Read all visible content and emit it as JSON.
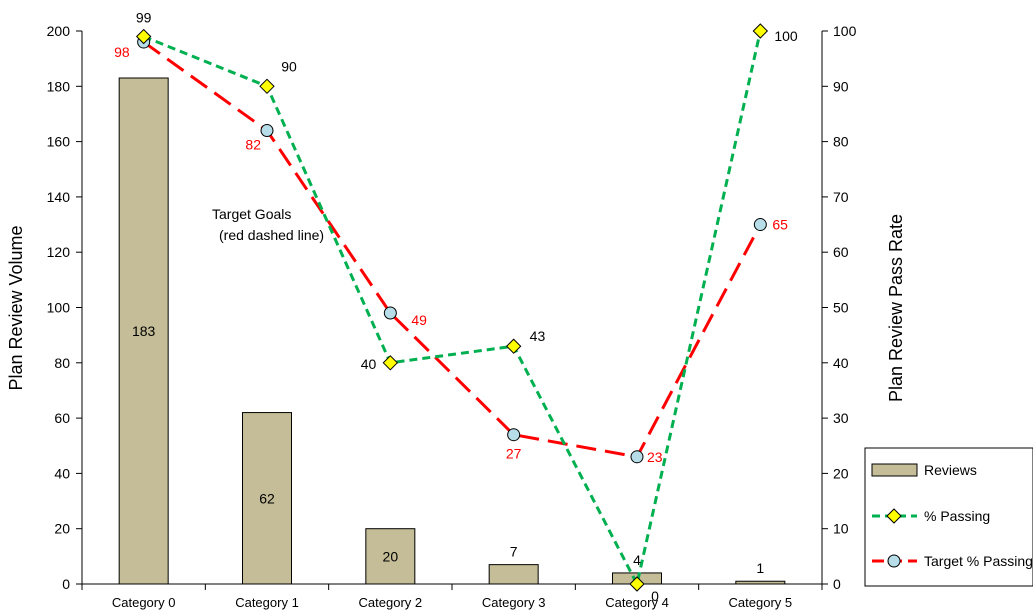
{
  "chart_data": {
    "type": "bar",
    "categories": [
      "Category 0",
      "Category 1",
      "Category 2",
      "Category 3",
      "Category 4",
      "Category 5"
    ],
    "series": [
      {
        "name": "Reviews",
        "type": "bar",
        "axis": "left",
        "values": [
          183,
          62,
          20,
          7,
          4,
          1
        ],
        "labels": [
          "183",
          "62",
          "20",
          "7",
          "4",
          "1"
        ]
      },
      {
        "name": "% Passing",
        "type": "line",
        "axis": "right",
        "values": [
          99,
          90,
          40,
          43,
          0,
          100
        ],
        "labels": [
          "99",
          "90",
          "40",
          "43",
          "0",
          "100"
        ]
      },
      {
        "name": "Target % Passing",
        "type": "line",
        "axis": "right",
        "values": [
          98,
          82,
          49,
          27,
          23,
          65
        ],
        "labels": [
          "98",
          "82",
          "49",
          "27",
          "23",
          "65"
        ]
      }
    ],
    "ylabel": "Plan Review Volume",
    "y2label": "Plan Review Pass Rate",
    "ylim": [
      0,
      200
    ],
    "y2lim": [
      0,
      100
    ],
    "yticks": [
      "0",
      "20",
      "40",
      "60",
      "80",
      "100",
      "120",
      "140",
      "160",
      "180",
      "200"
    ],
    "y2ticks": [
      "0",
      "10",
      "20",
      "30",
      "40",
      "50",
      "60",
      "70",
      "80",
      "90",
      "100"
    ],
    "annotation": [
      "Target Goals",
      "(red dashed line)"
    ],
    "legend_position": "bottom-right",
    "grid": false,
    "colors": {
      "bar": "#c4bd97",
      "bar_stroke": "#000000",
      "passing_line": "#00b050",
      "passing_marker": "#ffff00",
      "target_line": "#ff0000",
      "target_marker": "#b7dee8",
      "target_label": "#ff0000",
      "text": "#000000"
    }
  }
}
